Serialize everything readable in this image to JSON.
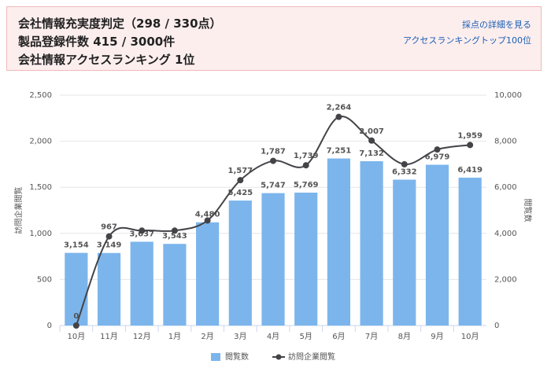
{
  "header": {
    "lines": [
      "会社情報充実度判定（298 / 330点）",
      "製品登録件数 415 / 3000件",
      "会社情報アクセスランキング 1位"
    ],
    "links": [
      "採点の詳細を見る",
      "アクセスランキングトップ100位"
    ]
  },
  "chart_data": {
    "type": "bar-line",
    "categories": [
      "10月",
      "11月",
      "12月",
      "1月",
      "2月",
      "3月",
      "4月",
      "5月",
      "6月",
      "7月",
      "8月",
      "9月",
      "10月"
    ],
    "series": [
      {
        "name": "閲覧数",
        "type": "bar",
        "axis": "y2",
        "color": "#7cb5ec",
        "values": [
          3154,
          3149,
          3637,
          3543,
          4480,
          5425,
          5747,
          5769,
          7251,
          7132,
          6332,
          6979,
          6419
        ],
        "value_labels": [
          "3,154",
          "3,149",
          "3,637",
          "3,543",
          "4,480",
          "5,425",
          "5,747",
          "5,769",
          "7,251",
          "7,132",
          "6,332",
          "6,979",
          "6,419"
        ]
      },
      {
        "name": "訪問企業閲覧",
        "type": "line",
        "axis": "y",
        "color": "#434348",
        "values": [
          0,
          967,
          1030,
          1030,
          1140,
          1577,
          1787,
          1739,
          2264,
          2007,
          1750,
          1910,
          1959
        ],
        "value_labels": [
          "0",
          "967",
          null,
          null,
          null,
          "1,577",
          "1,787",
          "1,739",
          "2,264",
          "2,007",
          null,
          null,
          "1,959"
        ]
      }
    ],
    "y_label": "訪問企業閲覧",
    "y2_label": "閲覧数",
    "ylim": [
      0,
      2500
    ],
    "yticks": [
      0,
      500,
      {
        "value": 1000,
        "label": "1,000"
      },
      {
        "value": 1500,
        "label": "1,500"
      },
      {
        "value": 2000,
        "label": "2,000"
      },
      {
        "value": 2500,
        "label": "2,500"
      }
    ],
    "y2lim": [
      0,
      10000
    ],
    "y2ticks": [
      0,
      {
        "value": 2000,
        "label": "2,000"
      },
      {
        "value": 4000,
        "label": "4,000"
      },
      {
        "value": 6000,
        "label": "6,000"
      },
      {
        "value": 8000,
        "label": "8,000"
      },
      {
        "value": 10000,
        "label": "10,000"
      }
    ],
    "grid": true,
    "legend": "bottom"
  }
}
